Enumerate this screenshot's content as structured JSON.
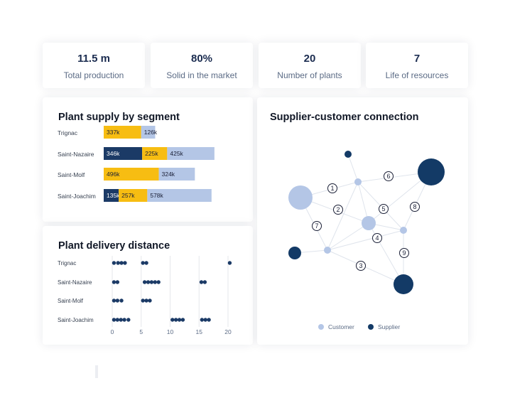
{
  "kpis": [
    {
      "value": "11.5 m",
      "label": "Total production"
    },
    {
      "value": "80%",
      "label": "Solid in the market"
    },
    {
      "value": "20",
      "label": "Number of plants"
    },
    {
      "value": "7",
      "label": "Life of resources"
    }
  ],
  "supply": {
    "title": "Plant supply by segment"
  },
  "delivery": {
    "title": "Plant delivery distance"
  },
  "network": {
    "title": "Supplier-customer connection",
    "legend": {
      "customer": "Customer",
      "supplier": "Supplier"
    },
    "edge_labels": [
      "1",
      "2",
      "3",
      "4",
      "5",
      "6",
      "7",
      "8",
      "9"
    ]
  },
  "colors": {
    "navy": "#1b3a66",
    "yellow": "#f7bd12",
    "light_blue": "#b4c6e6",
    "node_customer": "#b4c6e6",
    "node_supplier": "#133a66"
  },
  "chart_data": [
    {
      "type": "bar",
      "orientation": "horizontal",
      "stacked": true,
      "title": "Plant supply by segment",
      "categories": [
        "Trignac",
        "Saint-Nazaire",
        "Saint-Molf",
        "Saint-Joachim"
      ],
      "series": [
        {
          "color": "#1b3a66",
          "values": [
            0,
            346,
            0,
            135
          ],
          "labels": [
            "",
            "346k",
            "",
            "135k"
          ]
        },
        {
          "color": "#f7bd12",
          "values": [
            337,
            225,
            496,
            257
          ],
          "labels": [
            "337k",
            "225k",
            "496k",
            "257k"
          ]
        },
        {
          "color": "#b4c6e6",
          "values": [
            126,
            425,
            324,
            578
          ],
          "labels": [
            "126k",
            "425k",
            "324k",
            "578k"
          ]
        }
      ]
    },
    {
      "type": "scatter",
      "title": "Plant delivery distance",
      "categories": [
        "Trignac",
        "Saint-Nazaire",
        "Saint-Molf",
        "Saint-Joachim"
      ],
      "x_ticks": [
        "0",
        "5",
        "10",
        "15",
        "20"
      ],
      "xlim": [
        0,
        20
      ],
      "points": [
        {
          "row": 0,
          "x": [
            0.3,
            1.0,
            1.6,
            2.2,
            5.3,
            5.9,
            20.3
          ]
        },
        {
          "row": 1,
          "x": [
            0.3,
            0.9,
            5.6,
            6.2,
            6.8,
            7.4,
            8.0,
            15.4,
            16.0
          ]
        },
        {
          "row": 2,
          "x": [
            0.3,
            0.9,
            1.6,
            5.3,
            5.9,
            6.5
          ]
        },
        {
          "row": 3,
          "x": [
            0.3,
            0.9,
            1.5,
            2.1,
            2.8,
            10.4,
            11.0,
            11.6,
            12.2,
            15.5,
            16.1,
            16.7
          ]
        }
      ]
    }
  ]
}
